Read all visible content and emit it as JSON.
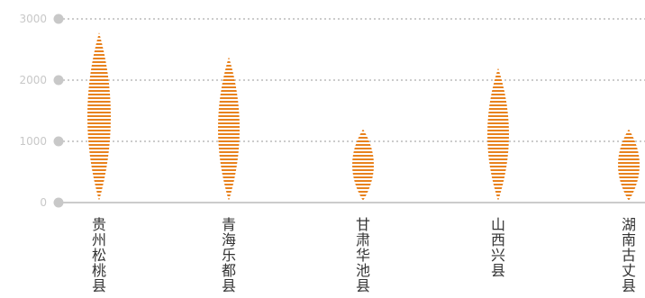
{
  "chart_data": {
    "type": "bar",
    "categories": [
      "贵州松桃县",
      "青海乐都县",
      "甘肃华池县",
      "山西兴县",
      "湖南古丈县"
    ],
    "values": [
      2780,
      2380,
      1200,
      2200,
      1200
    ],
    "ylim": [
      0,
      3000
    ],
    "yticks": [
      0,
      1000,
      2000,
      3000
    ],
    "grid": true,
    "colors": {
      "mark": "#e8821e",
      "grid": "#9a9a9a",
      "tick_dot": "#c8c8c8",
      "tick_text": "#c8c8c8",
      "axis": "#9a9a9a",
      "label": "#333333"
    }
  }
}
